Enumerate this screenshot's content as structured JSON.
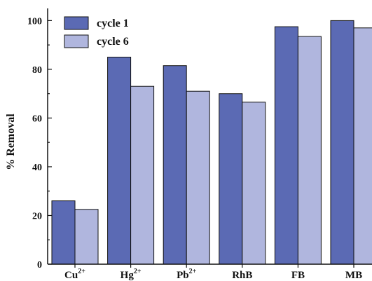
{
  "chart_data": {
    "type": "bar",
    "categories": [
      "Cu",
      "Hg",
      "Pb",
      "RhB",
      "FB",
      "MB"
    ],
    "category_superscripts": [
      "2+",
      "2+",
      "2+",
      "",
      "",
      ""
    ],
    "series": [
      {
        "name": "cycle 1",
        "values": [
          26,
          85,
          81.5,
          70,
          97.5,
          100
        ],
        "color": "#5b6ab4"
      },
      {
        "name": "cycle 6",
        "values": [
          22.5,
          73,
          71,
          66.5,
          93.5,
          97
        ],
        "color": "#b0b6de"
      }
    ],
    "ylabel": "% Removal",
    "xlabel": "",
    "ylim": [
      0,
      105
    ],
    "yticks": [
      0,
      20,
      40,
      60,
      80,
      100
    ],
    "legend": "top-left",
    "grid": false
  }
}
